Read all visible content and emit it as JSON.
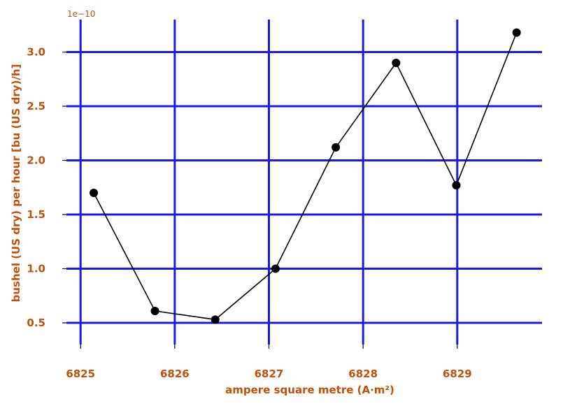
{
  "chart_data": {
    "type": "line",
    "title": "",
    "xlabel": "ampere square metre (A∙m²)",
    "ylabel": "bushel (US dry) per hour [bu (US dry)/h]",
    "y_offset_label": "1e−10",
    "y_scale_exponent": -10,
    "x_ticks": [
      6825,
      6826,
      6827,
      6828,
      6829
    ],
    "y_ticks": [
      0.5,
      1.0,
      1.5,
      2.0,
      2.5,
      3.0
    ],
    "x_tick_labels": [
      "6825",
      "6826",
      "6827",
      "6828",
      "6829"
    ],
    "y_tick_labels": [
      "0.5",
      "1.0",
      "1.5",
      "2.0",
      "2.5",
      "3.0"
    ],
    "xlim": [
      6824.85,
      6829.9
    ],
    "ylim": [
      0.3,
      3.3
    ],
    "grid": true,
    "series": [
      {
        "x": [
          6825.14,
          6825.79,
          6826.43,
          6827.07,
          6827.71,
          6828.35,
          6828.99,
          6829.63
        ],
        "y": [
          1.7,
          0.61,
          0.53,
          1.0,
          2.12,
          2.9,
          1.77,
          3.18
        ]
      }
    ]
  },
  "colors": {
    "grid": "#1a1ae6",
    "text": "#c0500a",
    "line": "#000000",
    "marker": "#000000"
  }
}
